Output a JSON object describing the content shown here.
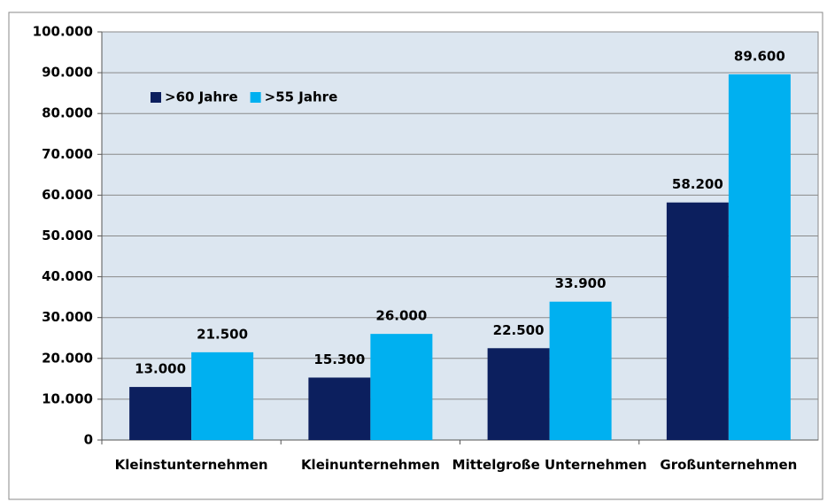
{
  "chart_data": {
    "type": "bar",
    "categories": [
      "Kleinstunternehmen",
      "Kleinunternehmen",
      "Mittelgroße Unternehmen",
      "Großunternehmen"
    ],
    "series": [
      {
        "name": ">60 Jahre",
        "color": "#0c1f5e",
        "values": [
          13000,
          15300,
          22500,
          58200
        ],
        "value_labels": [
          "13.000",
          "15.300",
          "22.500",
          "58.200"
        ]
      },
      {
        "name": ">55 Jahre",
        "color": "#00b0f0",
        "values": [
          21500,
          26000,
          33900,
          89600
        ],
        "value_labels": [
          "21.500",
          "26.000",
          "33.900",
          "89.600"
        ]
      }
    ],
    "ylim": [
      0,
      100000
    ],
    "yticks": [
      0,
      {
        "value": 10000,
        "label": "10.000"
      },
      {
        "value": 20000,
        "label": "20.000"
      },
      {
        "value": 30000,
        "label": "30.000"
      },
      {
        "value": 40000,
        "label": "40.000"
      },
      {
        "value": 50000,
        "label": "50.000"
      },
      {
        "value": 60000,
        "label": "60.000"
      },
      {
        "value": 70000,
        "label": "70.000"
      },
      {
        "value": 80000,
        "label": "80.000"
      },
      {
        "value": 90000,
        "label": "90.000"
      },
      {
        "value": 100000,
        "label": "100.000"
      }
    ],
    "grid": true,
    "legend": "upper left"
  }
}
